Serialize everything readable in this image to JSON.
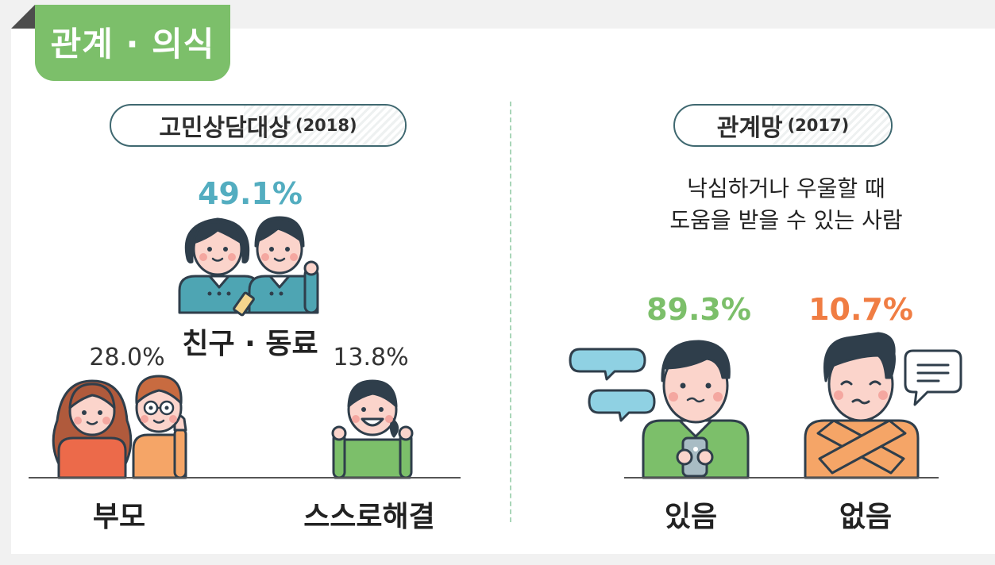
{
  "section": {
    "title": "관계 · 의식"
  },
  "left": {
    "title": "고민상담대상",
    "year": "(2018)",
    "items": [
      {
        "label": "친구 · 동료",
        "value": "49.1%"
      },
      {
        "label": "부모",
        "value": "28.0%"
      },
      {
        "label": "스스로해결",
        "value": "13.8%"
      }
    ]
  },
  "right": {
    "title": "관계망",
    "year": "(2017)",
    "desc_line1": "낙심하거나 우울할 때",
    "desc_line2": "도움을 받을 수 있는 사람",
    "items": [
      {
        "label": "있음",
        "value": "89.3%"
      },
      {
        "label": "없음",
        "value": "10.7%"
      }
    ]
  },
  "colors": {
    "green": "#7cbf6a",
    "teal": "#53adc0",
    "orange": "#f07d43",
    "navy": "#2f3e4b"
  }
}
